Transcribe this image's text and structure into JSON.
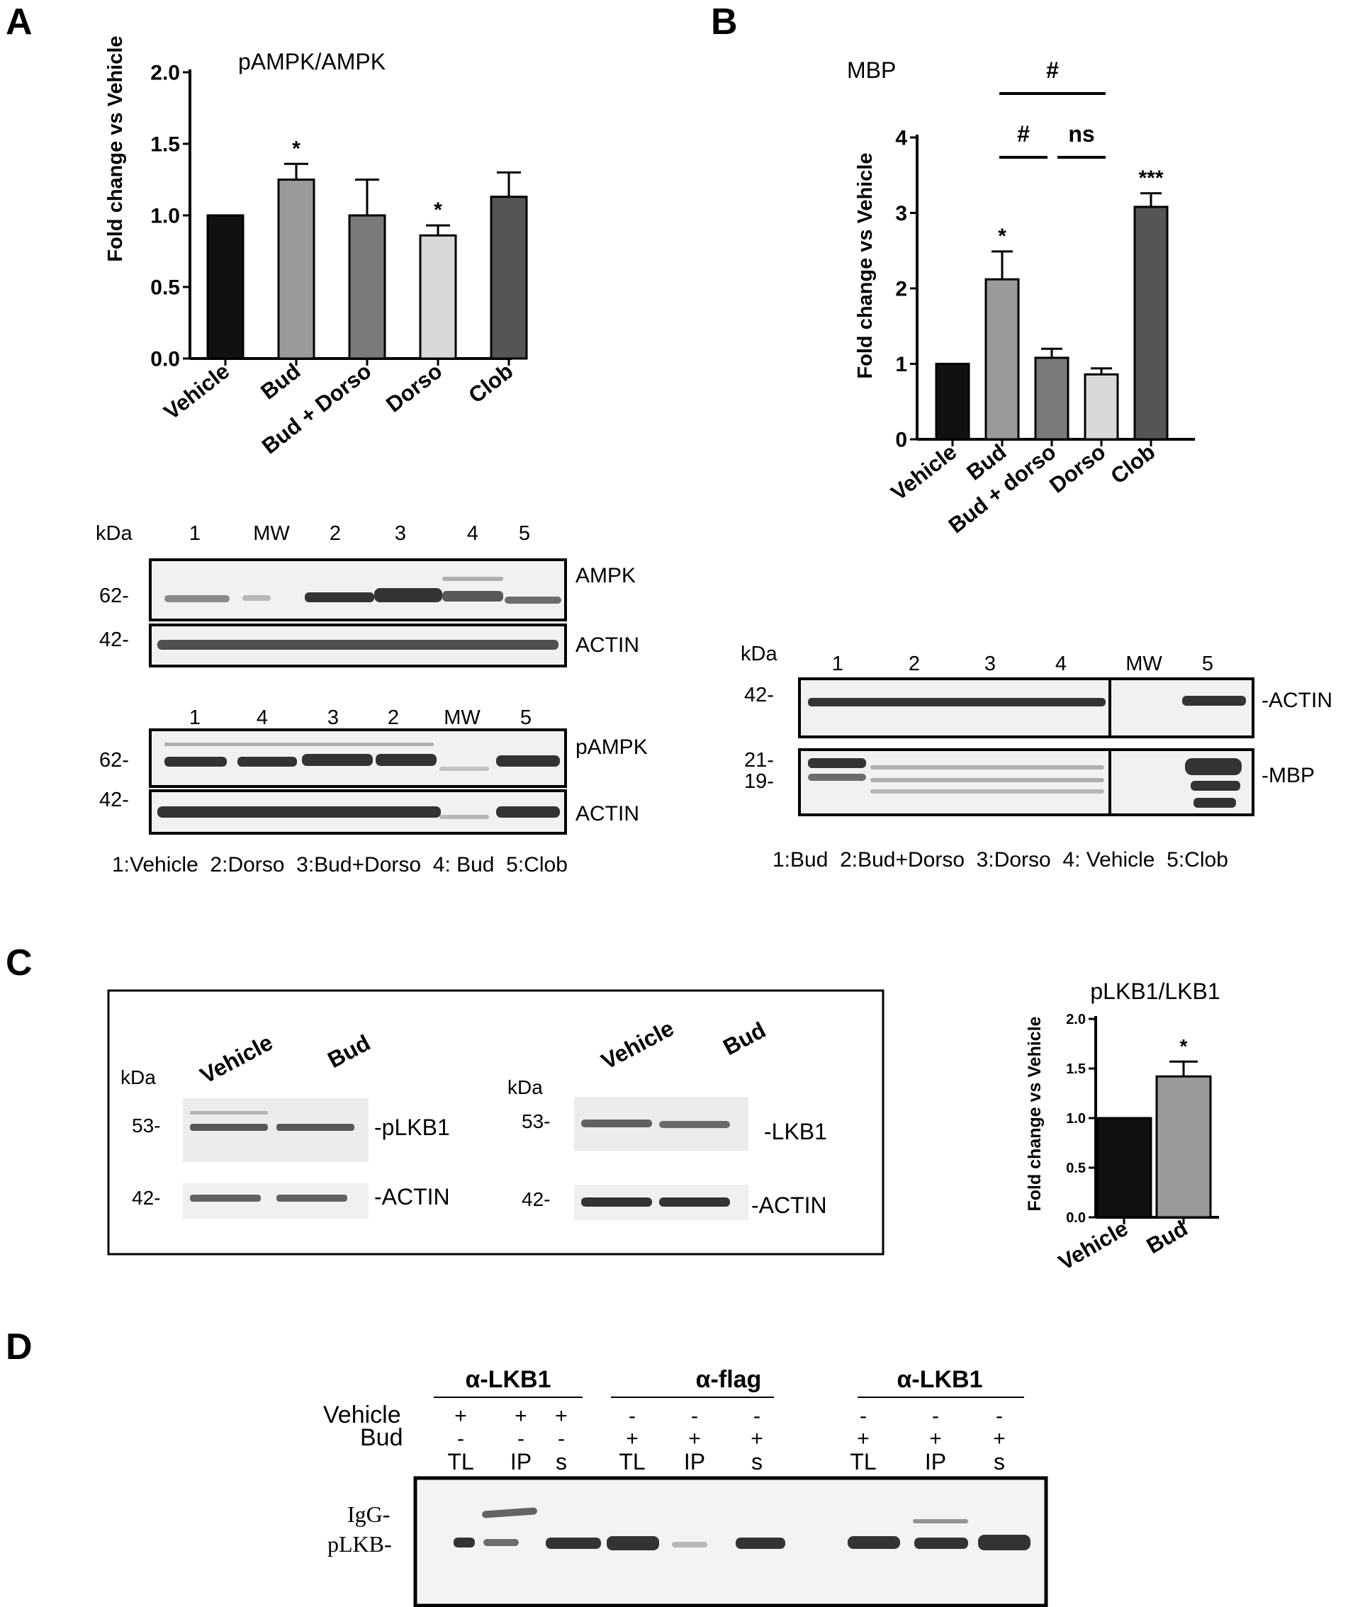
{
  "panels": {
    "A": {
      "letter": "A",
      "chart_data": {
        "type": "bar",
        "title": "pAMPK/AMPK",
        "ylabel": "Fold change vs Vehicle",
        "ylim": [
          0,
          2.0
        ],
        "yticks": [
          "0.0",
          "0.5",
          "1.0",
          "1.5",
          "2.0"
        ],
        "categories": [
          "Vehicle",
          "Bud",
          "Bud + Dorso",
          "Dorso",
          "Clob"
        ],
        "values": [
          1.0,
          1.25,
          1.0,
          0.86,
          1.13
        ],
        "errors": [
          0,
          0.11,
          0.25,
          0.07,
          0.17
        ],
        "colors": [
          "#111111",
          "#9a9a9a",
          "#7a7a7a",
          "#d8d8d8",
          "#555555"
        ],
        "significance": [
          "",
          "*",
          "",
          "*",
          ""
        ]
      },
      "blot1": {
        "kda": "kDa",
        "lanes": [
          "1",
          "MW",
          "2",
          "3",
          "4",
          "5"
        ],
        "markers": [
          "62-",
          "42-"
        ],
        "labels": [
          "AMPK",
          "ACTIN"
        ]
      },
      "blot2": {
        "lanes": [
          "1",
          "4",
          "3",
          "2",
          "MW",
          "5"
        ],
        "markers": [
          "62-",
          "42-"
        ],
        "labels": [
          "pAMPK",
          "ACTIN"
        ]
      },
      "legend": "1:Vehicle  2:Dorso  3:Bud+Dorso  4: Bud  5:Clob"
    },
    "B": {
      "letter": "B",
      "chart_data": {
        "type": "bar",
        "title": "MBP",
        "ylabel": "Fold change vs Vehicle",
        "ylim": [
          0,
          4
        ],
        "yticks": [
          "0",
          "1",
          "2",
          "3",
          "4"
        ],
        "categories": [
          "Vehicle",
          "Bud",
          "Bud + dorso",
          "Dorso",
          "Clob"
        ],
        "values": [
          1.0,
          2.12,
          1.08,
          0.86,
          3.08
        ],
        "errors": [
          0,
          0.37,
          0.12,
          0.08,
          0.18
        ],
        "colors": [
          "#111111",
          "#9a9a9a",
          "#7a7a7a",
          "#d8d8d8",
          "#555555"
        ],
        "significance": [
          "",
          "*",
          "",
          "",
          "***"
        ],
        "brackets": [
          "#",
          "#",
          "ns"
        ]
      },
      "blot": {
        "kda": "kDa",
        "lanes": [
          "1",
          "2",
          "3",
          "4",
          "MW",
          "5"
        ],
        "markers": [
          "42-",
          "21-",
          "19-"
        ],
        "labels": [
          "-ACTIN",
          "-MBP"
        ]
      },
      "legend": "1:Bud  2:Bud+Dorso  3:Dorso  4: Vehicle  5:Clob"
    },
    "C": {
      "letter": "C",
      "blot_left": {
        "kda": "kDa",
        "lanes": [
          "Vehicle",
          "Bud"
        ],
        "markers": [
          "53-",
          "42-"
        ],
        "labels": [
          "-pLKB1",
          "-ACTIN"
        ]
      },
      "blot_right": {
        "kda": "kDa",
        "lanes": [
          "Vehicle",
          "Bud"
        ],
        "markers": [
          "53-",
          "42-"
        ],
        "labels": [
          "-LKB1",
          "-ACTIN"
        ]
      },
      "chart_data": {
        "type": "bar",
        "title": "pLKB1/LKB1",
        "ylabel": "Fold change vs Vehicle",
        "ylim": [
          0,
          2.0
        ],
        "yticks": [
          "0.0",
          "0.5",
          "1.0",
          "1.5",
          "2.0"
        ],
        "categories": [
          "Vehicle",
          "Bud"
        ],
        "values": [
          1.0,
          1.42
        ],
        "errors": [
          0,
          0.15
        ],
        "colors": [
          "#111111",
          "#9a9a9a"
        ],
        "significance": [
          "",
          "*"
        ]
      }
    },
    "D": {
      "letter": "D",
      "groups": [
        "α-LKB1",
        "α-flag",
        "α-LKB1"
      ],
      "row_labels": [
        "Vehicle",
        "Bud"
      ],
      "vehicle_signs": [
        "+",
        "+",
        "+",
        "-",
        "-",
        "-",
        "-",
        "-",
        "-"
      ],
      "bud_signs": [
        "-",
        "-",
        "-",
        "+",
        "+",
        "+",
        "+",
        "+",
        "+"
      ],
      "lanes": [
        "TL",
        "IP",
        "s",
        "TL",
        "IP",
        "s",
        "TL",
        "IP",
        "s"
      ],
      "band_labels": [
        "IgG-",
        "pLKB-"
      ]
    }
  }
}
